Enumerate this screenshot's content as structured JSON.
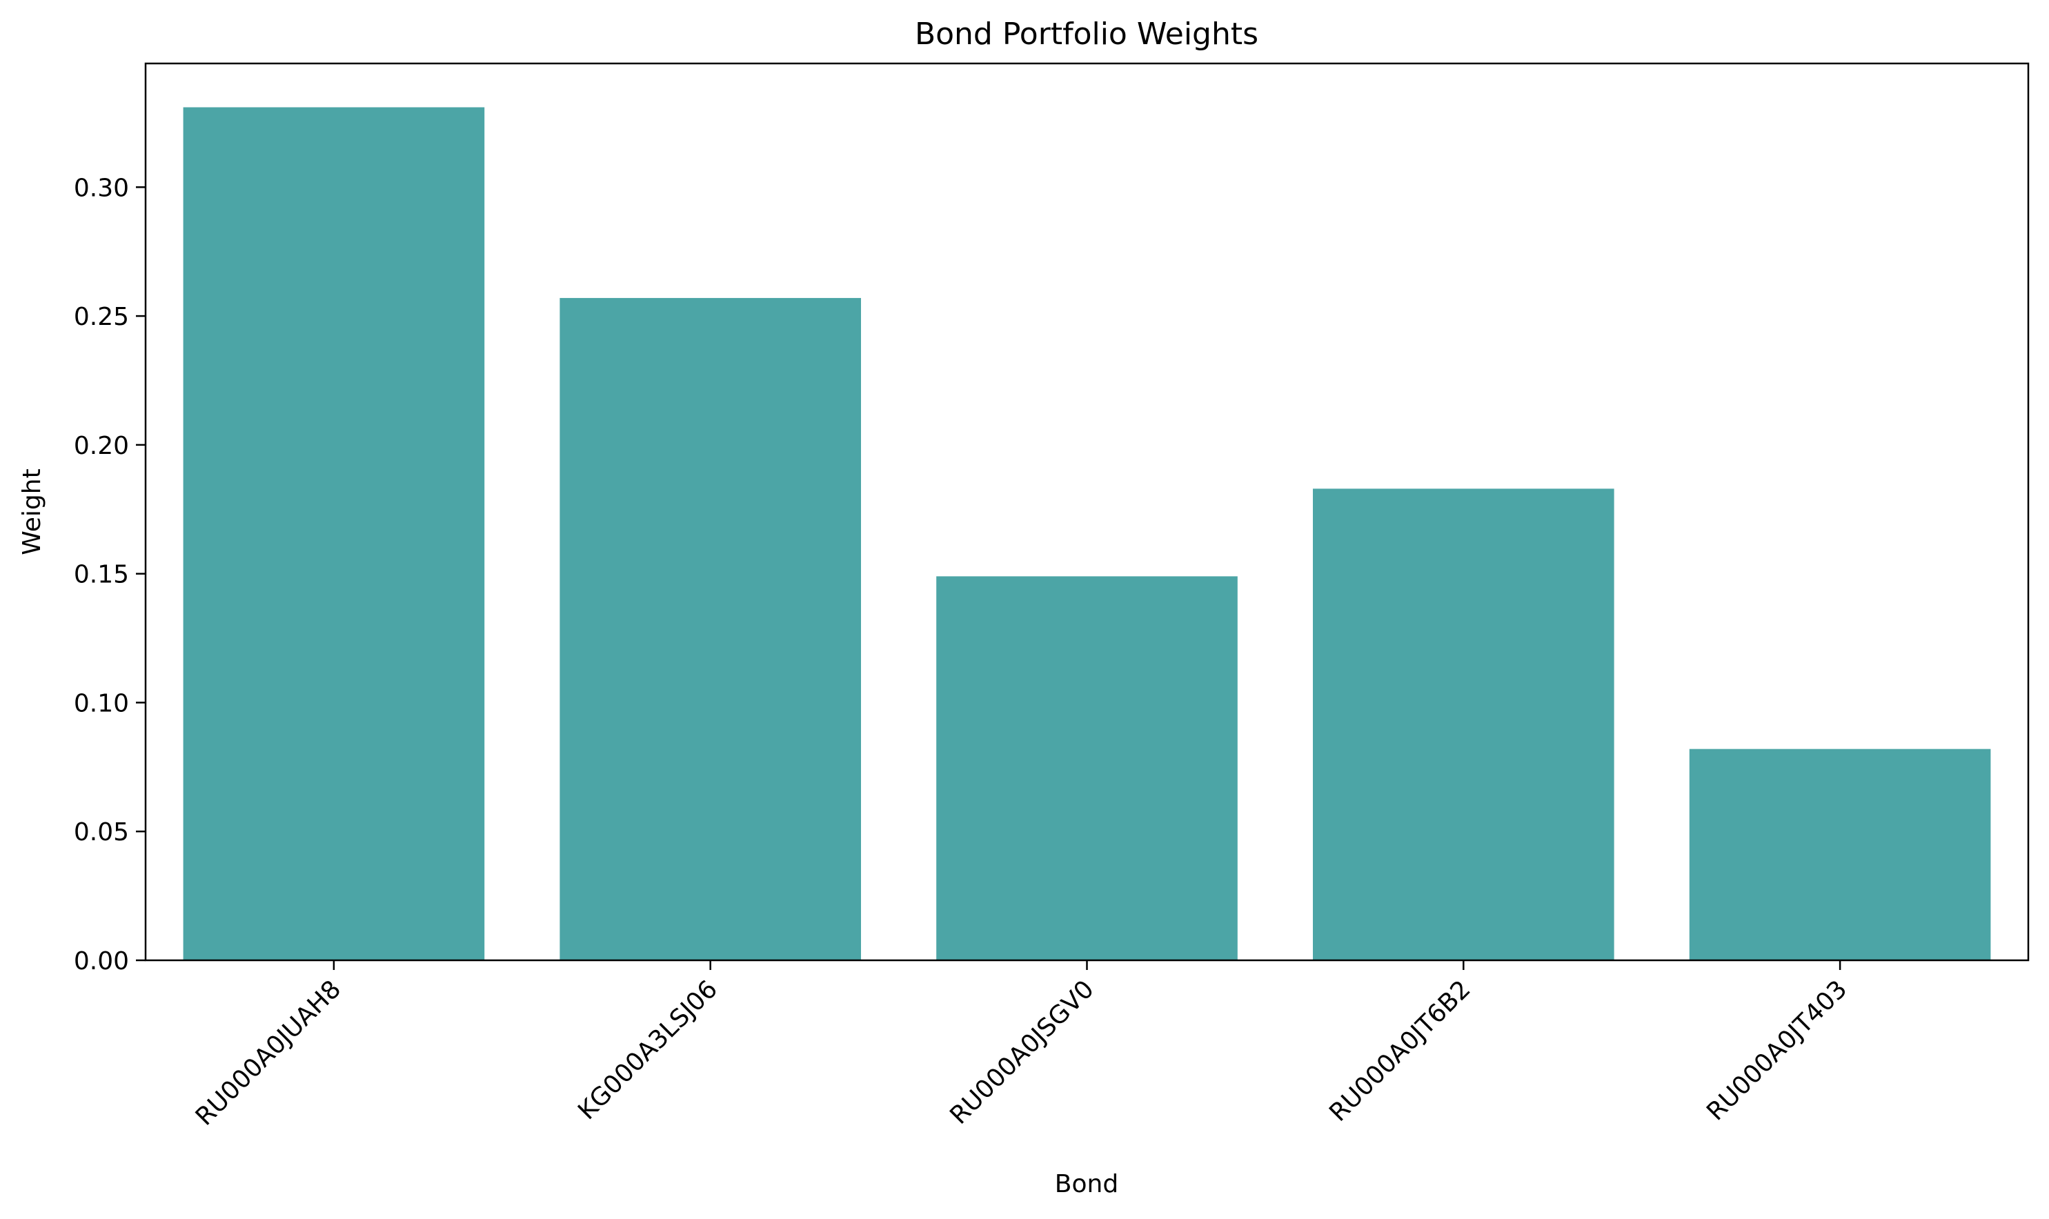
{
  "chart_data": {
    "type": "bar",
    "title": "Bond Portfolio Weights",
    "xlabel": "Bond",
    "ylabel": "Weight",
    "categories": [
      "RU000A0JUAH8",
      "KG000A3LSJ06",
      "RU000A0JSGV0",
      "RU000A0JT6B2",
      "RU000A0JT403"
    ],
    "values": [
      0.331,
      0.257,
      0.149,
      0.183,
      0.082
    ],
    "ylim": [
      0,
      0.348
    ],
    "yticks": [
      0.0,
      0.05,
      0.1,
      0.15,
      0.2,
      0.25,
      0.3
    ],
    "ytick_labels": [
      "0.00",
      "0.05",
      "0.10",
      "0.15",
      "0.20",
      "0.25",
      "0.30"
    ],
    "bar_color": "#4ca5a6",
    "grid": false,
    "xtick_rotation_deg": 45
  }
}
